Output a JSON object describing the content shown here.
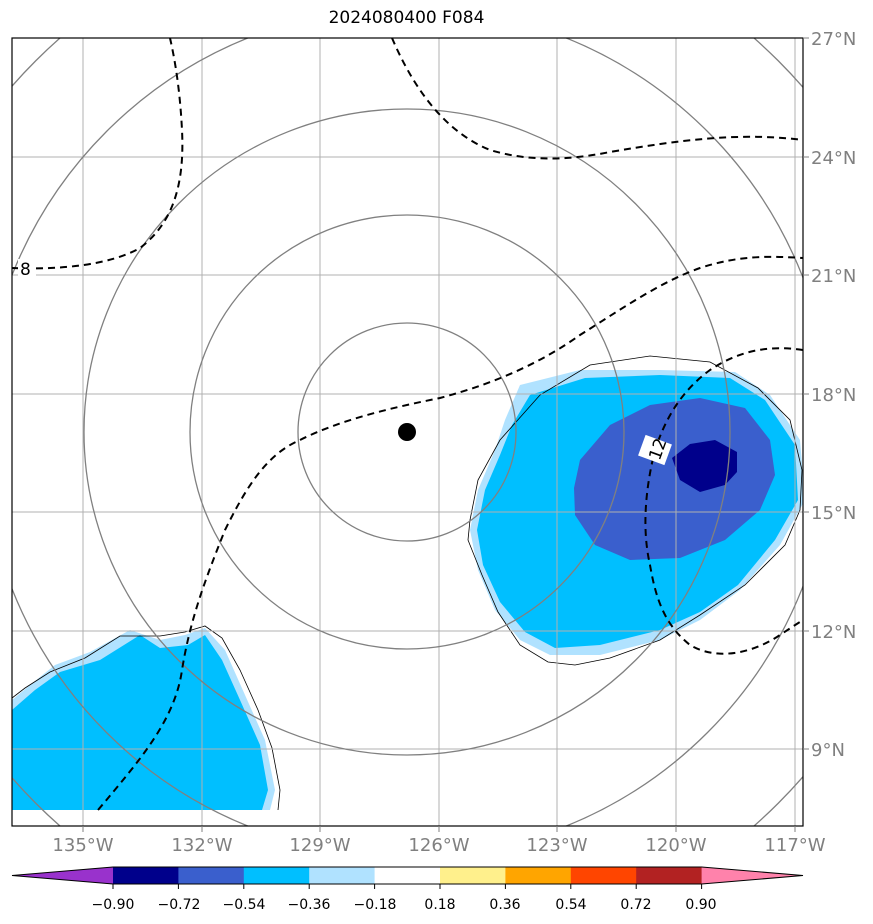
{
  "title": "2024080400 F084",
  "map": {
    "lon_labels": [
      "135°W",
      "132°W",
      "129°W",
      "126°W",
      "123°W",
      "120°W",
      "117°W"
    ],
    "lat_labels": [
      "9°N",
      "12°N",
      "15°N",
      "18°N",
      "21°N",
      "24°N",
      "27°N"
    ],
    "extent": {
      "lon_min": -136.8,
      "lon_max": -116.8,
      "lat_min": 7.5,
      "lat_max": 27.0
    },
    "storm_center": {
      "lon": -126.8,
      "lat": 17.0
    },
    "range_rings": 5,
    "contour_labels": [
      "8",
      "12"
    ],
    "grid_color": "#b0b0b0",
    "ring_color": "#808080"
  },
  "colorbar": {
    "ticks": [
      "−0.90",
      "−0.72",
      "−0.54",
      "−0.36",
      "−0.18",
      "0.18",
      "0.36",
      "0.54",
      "0.72",
      "0.90"
    ],
    "colors": [
      "#9932cc",
      "#00008b",
      "#3a5fcd",
      "#00bfff",
      "#b0e2ff",
      "#ffffff",
      "#fff08c",
      "#ffa500",
      "#ff4500",
      "#b22222",
      "#ff82ab"
    ]
  }
}
